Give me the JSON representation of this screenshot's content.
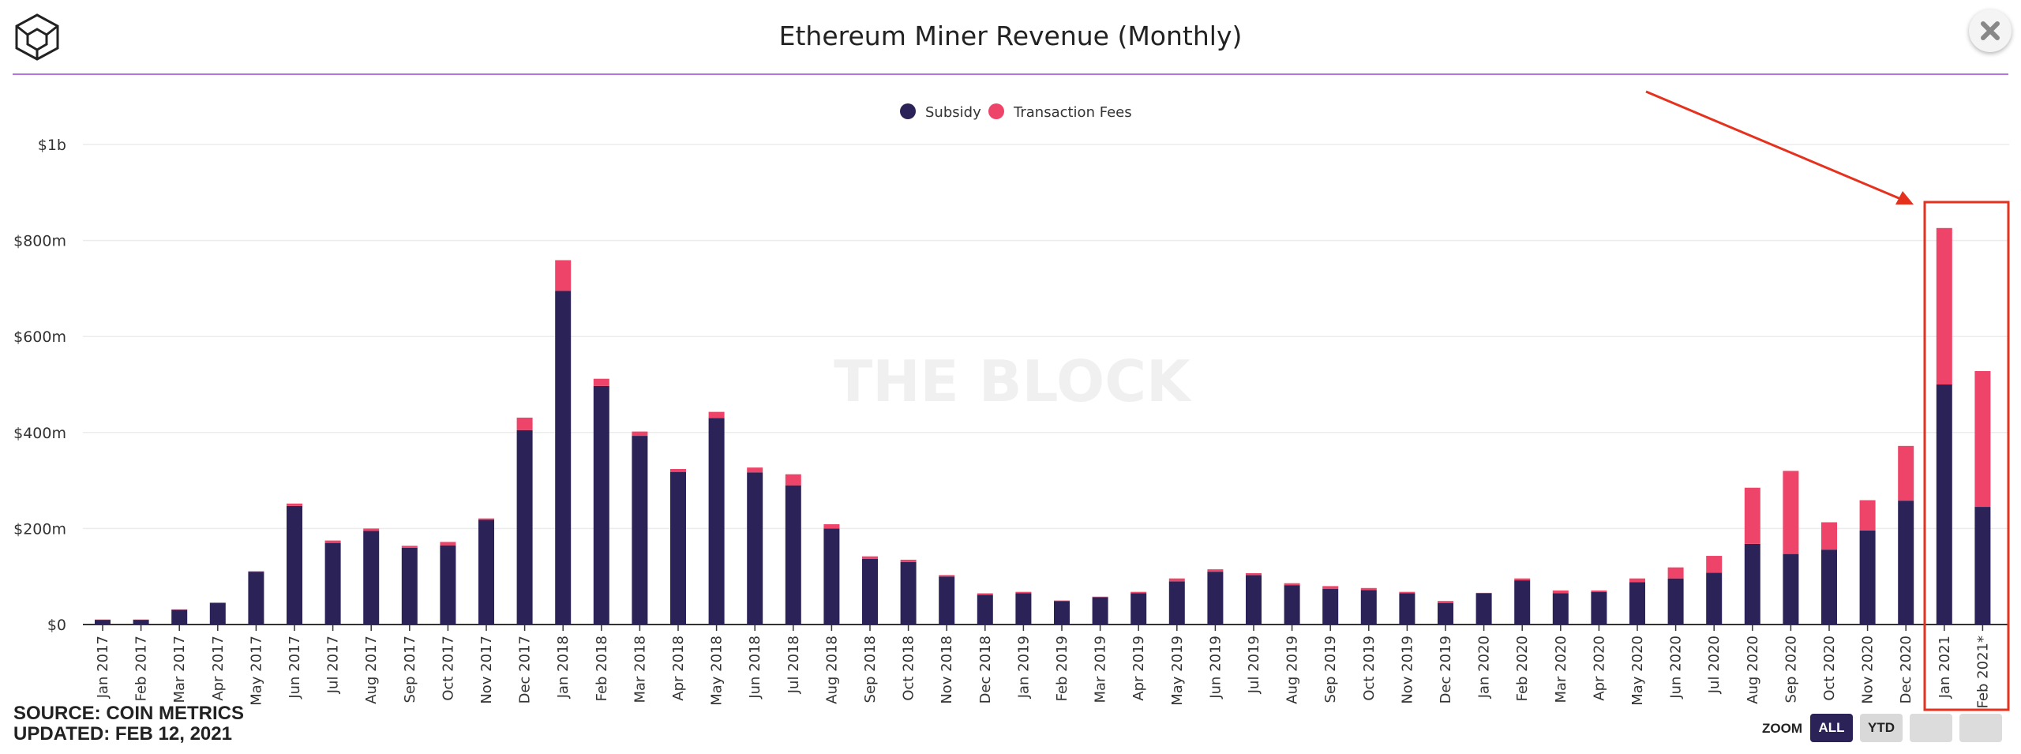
{
  "title": "Ethereum Miner Revenue (Monthly)",
  "footer": {
    "source": "SOURCE: COIN METRICS",
    "updated": "UPDATED: FEB 12, 2021"
  },
  "watermark": "THE BLOCK",
  "zoom": {
    "label": "ZOOM",
    "buttons": [
      "ALL",
      "YTD",
      "",
      ""
    ],
    "selected": "ALL"
  },
  "colors": {
    "subsidy": "#2b2358",
    "fees": "#ef4469",
    "title_rule": "#b574e0",
    "annotation": "#e4321e"
  },
  "icons": {
    "logo": "cube-logo-icon",
    "close": "close-icon"
  },
  "chart_data": {
    "type": "bar",
    "stacked": true,
    "title": "Ethereum Miner Revenue (Monthly)",
    "xlabel": "",
    "ylabel": "",
    "ylim": [
      0,
      1000000000
    ],
    "yticks": [
      "$0",
      "$200m",
      "$400m",
      "$600m",
      "$800m",
      "$1b"
    ],
    "grid": true,
    "legend_position": "top-center",
    "categories": [
      "Jan 2017",
      "Feb 2017",
      "Mar 2017",
      "Apr 2017",
      "May 2017",
      "Jun 2017",
      "Jul 2017",
      "Aug 2017",
      "Sep 2017",
      "Oct 2017",
      "Nov 2017",
      "Dec 2017",
      "Jan 2018",
      "Feb 2018",
      "Mar 2018",
      "Apr 2018",
      "May 2018",
      "Jun 2018",
      "Jul 2018",
      "Aug 2018",
      "Sep 2018",
      "Oct 2018",
      "Nov 2018",
      "Dec 2018",
      "Jan 2019",
      "Feb 2019",
      "Mar 2019",
      "Apr 2019",
      "May 2019",
      "Jun 2019",
      "Jul 2019",
      "Aug 2019",
      "Sep 2019",
      "Oct 2019",
      "Nov 2019",
      "Dec 2019",
      "Jan 2020",
      "Feb 2020",
      "Mar 2020",
      "Apr 2020",
      "May 2020",
      "Jun 2020",
      "Jul 2020",
      "Aug 2020",
      "Sep 2020",
      "Oct 2020",
      "Nov 2020",
      "Dec 2020",
      "Jan 2021",
      "Feb 2021*"
    ],
    "series": [
      {
        "name": "Subsidy",
        "color": "#2b2358",
        "values": [
          10000000,
          10000000,
          31000000,
          45000000,
          110000000,
          247000000,
          170000000,
          195000000,
          160000000,
          165000000,
          218000000,
          405000000,
          695000000,
          497000000,
          393000000,
          318000000,
          430000000,
          317000000,
          290000000,
          200000000,
          137000000,
          130000000,
          100000000,
          62000000,
          65000000,
          49000000,
          57000000,
          65000000,
          90000000,
          110000000,
          103000000,
          82000000,
          74000000,
          72000000,
          65000000,
          45000000,
          65000000,
          92000000,
          65000000,
          68000000,
          88000000,
          96000000,
          108000000,
          168000000,
          147000000,
          156000000,
          196000000,
          258000000,
          500000000,
          245000000
        ]
      },
      {
        "name": "Transaction Fees",
        "color": "#ef4469",
        "values": [
          300000,
          300000,
          500000,
          800000,
          1000000,
          5000000,
          5000000,
          5000000,
          4000000,
          7000000,
          3000000,
          26000000,
          64000000,
          15000000,
          9000000,
          6000000,
          13000000,
          10000000,
          23000000,
          9000000,
          5000000,
          5000000,
          3000000,
          3000000,
          3000000,
          1000000,
          1000000,
          3000000,
          6000000,
          5000000,
          4000000,
          4000000,
          6000000,
          4000000,
          3000000,
          4000000,
          1000000,
          4000000,
          6000000,
          3000000,
          8000000,
          23000000,
          35000000,
          117000000,
          173000000,
          57000000,
          63000000,
          114000000,
          326000000,
          283000000
        ]
      }
    ],
    "annotations": [
      {
        "type": "arrow-and-box",
        "target": [
          "Jan 2021",
          "Feb 2021*"
        ]
      }
    ]
  }
}
